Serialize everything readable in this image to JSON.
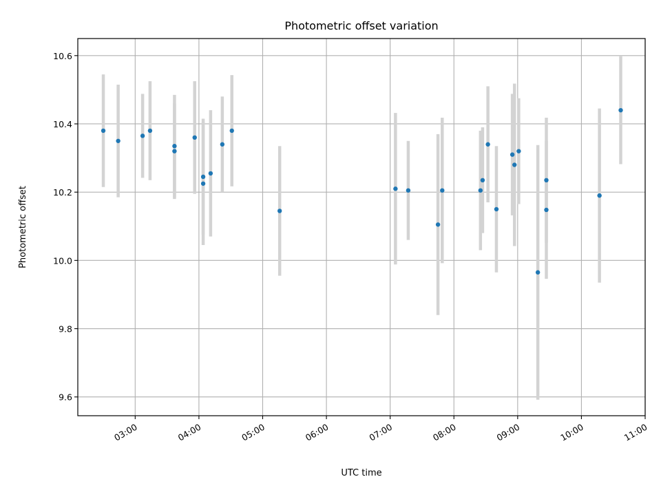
{
  "chart_data": {
    "type": "scatter",
    "title": "Photometric offset variation",
    "xlabel": "UTC time",
    "ylabel": "Photometric offset",
    "x_tick_labels": [
      "03:00",
      "04:00",
      "05:00",
      "06:00",
      "07:00",
      "08:00",
      "09:00",
      "10:00",
      "11:00"
    ],
    "y_tick_labels": [
      "9.6",
      "9.8",
      "10.0",
      "10.2",
      "10.4",
      "10.6"
    ],
    "y_ticks": [
      9.6,
      9.8,
      10.0,
      10.2,
      10.4,
      10.6
    ],
    "xlim_hours": [
      2.1,
      11.0
    ],
    "ylim": [
      9.545,
      10.65
    ],
    "grid": true,
    "marker_color": "#1f77b4",
    "errorbar_color": "#d3d3d3",
    "points": [
      {
        "t": "02:30",
        "y": 10.38,
        "err": 0.165
      },
      {
        "t": "02:44",
        "y": 10.35,
        "err": 0.165
      },
      {
        "t": "03:07",
        "y": 10.365,
        "err": 0.123
      },
      {
        "t": "03:14",
        "y": 10.38,
        "err": 0.145
      },
      {
        "t": "03:37",
        "y": 10.335,
        "err": 0.15
      },
      {
        "t": "03:37",
        "y": 10.32,
        "err": 0.14
      },
      {
        "t": "03:56",
        "y": 10.36,
        "err": 0.165
      },
      {
        "t": "04:04",
        "y": 10.245,
        "err": 0.17
      },
      {
        "t": "04:04",
        "y": 10.225,
        "err": 0.18
      },
      {
        "t": "04:11",
        "y": 10.255,
        "err": 0.185
      },
      {
        "t": "04:22",
        "y": 10.34,
        "err": 0.14
      },
      {
        "t": "04:31",
        "y": 10.38,
        "err": 0.163
      },
      {
        "t": "05:16",
        "y": 10.145,
        "err": 0.19
      },
      {
        "t": "07:05",
        "y": 10.21,
        "err": 0.222
      },
      {
        "t": "07:17",
        "y": 10.205,
        "err": 0.145
      },
      {
        "t": "07:45",
        "y": 10.105,
        "err": 0.265
      },
      {
        "t": "07:49",
        "y": 10.205,
        "err": 0.213
      },
      {
        "t": "08:25",
        "y": 10.205,
        "err": 0.175
      },
      {
        "t": "08:27",
        "y": 10.235,
        "err": 0.155
      },
      {
        "t": "08:32",
        "y": 10.34,
        "err": 0.17
      },
      {
        "t": "08:40",
        "y": 10.15,
        "err": 0.185
      },
      {
        "t": "08:55",
        "y": 10.31,
        "err": 0.178
      },
      {
        "t": "08:57",
        "y": 10.28,
        "err": 0.238
      },
      {
        "t": "09:01",
        "y": 10.32,
        "err": 0.155
      },
      {
        "t": "09:19",
        "y": 9.965,
        "err": 0.373
      },
      {
        "t": "09:27",
        "y": 10.235,
        "err": 0.183
      },
      {
        "t": "09:27",
        "y": 10.148,
        "err": 0.202
      },
      {
        "t": "10:17",
        "y": 10.19,
        "err": 0.255
      },
      {
        "t": "10:37",
        "y": 10.44,
        "err": 0.158
      }
    ]
  }
}
